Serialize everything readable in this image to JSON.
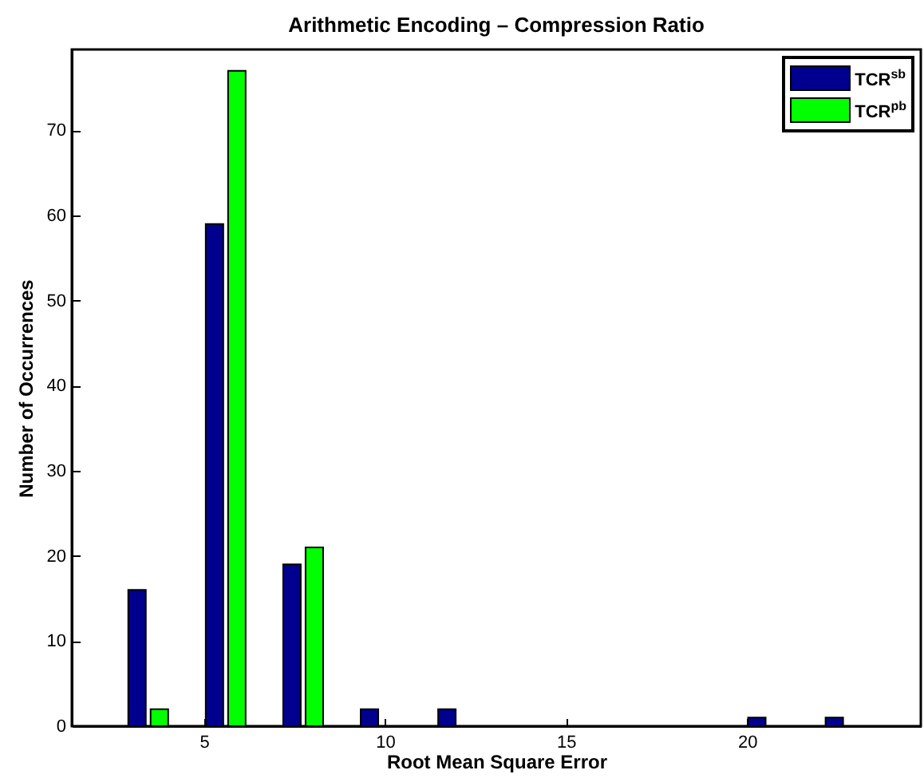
{
  "chart_data": {
    "type": "bar",
    "title": "Arithmetic Encoding – Compression Ratio",
    "xlabel": "Root Mean Square Error",
    "ylabel": "Number of Occurrences",
    "x": [
      3.46,
      5.6,
      7.74,
      9.88,
      12.02,
      14.16,
      16.3,
      18.44,
      20.58,
      22.72
    ],
    "series": [
      {
        "name": "TCR$^{sb}$",
        "color": "#00008f",
        "values": [
          16,
          59,
          19,
          2,
          2,
          0,
          0,
          0,
          1,
          1
        ]
      },
      {
        "name": "TCR$^{pb}$",
        "color": "#00ff00",
        "values": [
          2,
          77,
          21,
          0,
          0,
          0,
          0,
          0,
          0,
          0
        ]
      }
    ],
    "xlim": [
      1.35,
      24.8
    ],
    "xticks": [
      5,
      10,
      15,
      20
    ],
    "ylim": [
      0,
      79.5
    ],
    "yticks": [
      0,
      10,
      20,
      30,
      40,
      50,
      60,
      70
    ],
    "grid": false,
    "legend": "top right"
  }
}
